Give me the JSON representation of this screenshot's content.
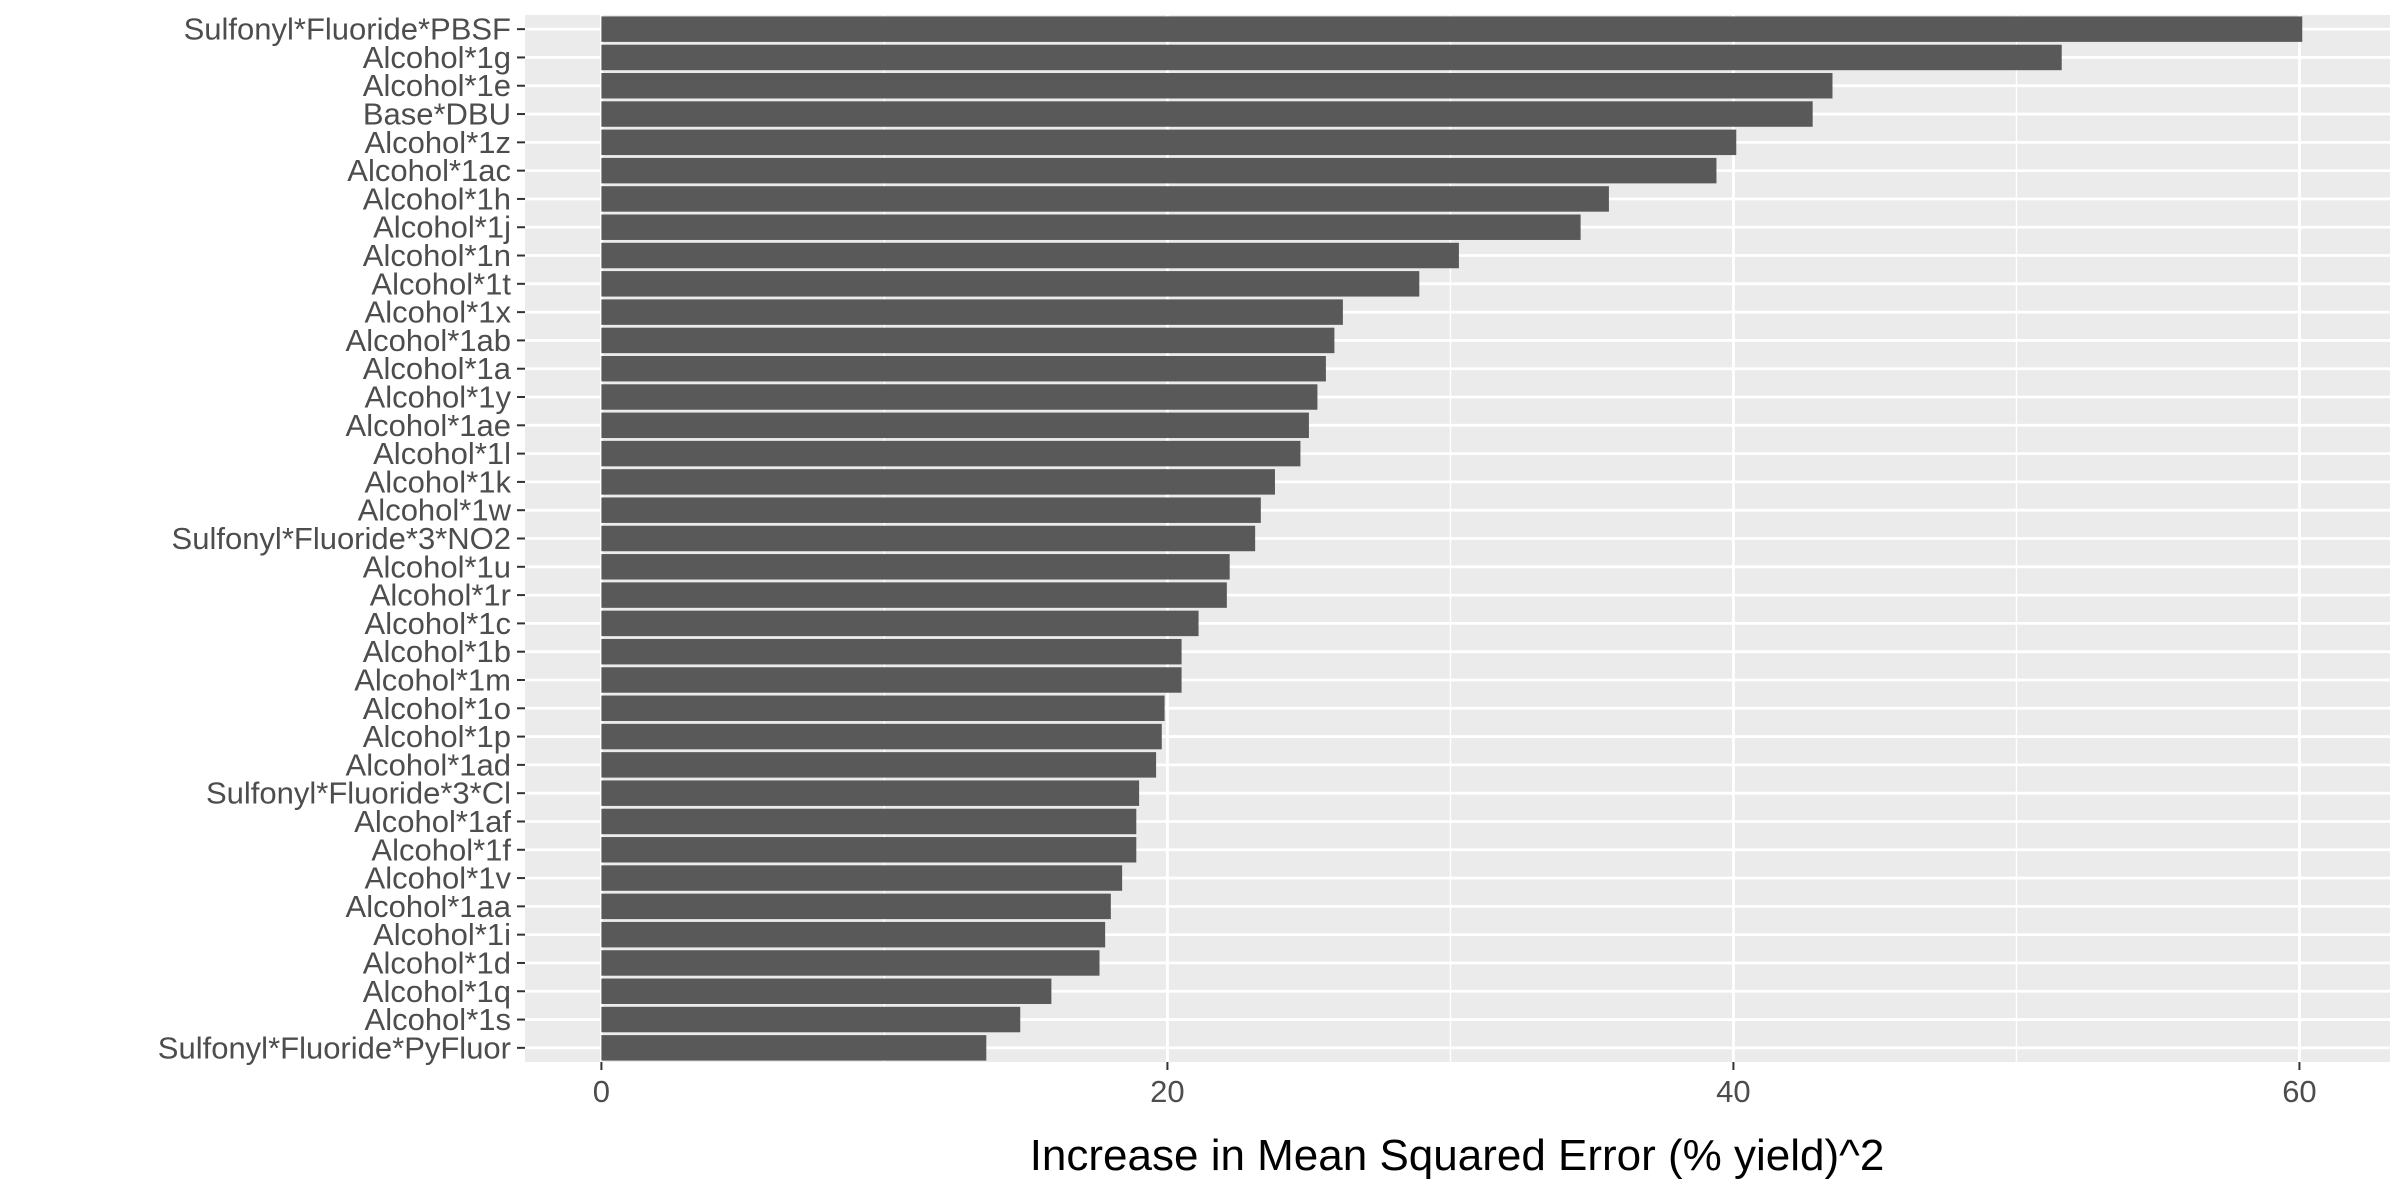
{
  "chart_data": {
    "type": "bar",
    "orientation": "horizontal",
    "categories": [
      "Sulfonyl*Fluoride*PBSF",
      "Alcohol*1g",
      "Alcohol*1e",
      "Base*DBU",
      "Alcohol*1z",
      "Alcohol*1ac",
      "Alcohol*1h",
      "Alcohol*1j",
      "Alcohol*1n",
      "Alcohol*1t",
      "Alcohol*1x",
      "Alcohol*1ab",
      "Alcohol*1a",
      "Alcohol*1y",
      "Alcohol*1ae",
      "Alcohol*1l",
      "Alcohol*1k",
      "Alcohol*1w",
      "Sulfonyl*Fluoride*3*NO2",
      "Alcohol*1u",
      "Alcohol*1r",
      "Alcohol*1c",
      "Alcohol*1b",
      "Alcohol*1m",
      "Alcohol*1o",
      "Alcohol*1p",
      "Alcohol*1ad",
      "Sulfonyl*Fluoride*3*Cl",
      "Alcohol*1af",
      "Alcohol*1f",
      "Alcohol*1v",
      "Alcohol*1aa",
      "Alcohol*1i",
      "Alcohol*1d",
      "Alcohol*1q",
      "Alcohol*1s",
      "Sulfonyl*Fluoride*PyFluor"
    ],
    "values": [
      60.1,
      51.6,
      43.5,
      42.8,
      40.1,
      39.4,
      35.6,
      34.6,
      30.3,
      28.9,
      26.2,
      25.9,
      25.6,
      25.3,
      25.0,
      24.7,
      23.8,
      23.3,
      23.1,
      22.2,
      22.1,
      21.1,
      20.5,
      20.5,
      19.9,
      19.8,
      19.6,
      19.0,
      18.9,
      18.9,
      18.4,
      18.0,
      17.8,
      17.6,
      15.9,
      14.8,
      13.6
    ],
    "xlabel": "Increase in Mean Squared Error (% yield)^2",
    "ylabel": "",
    "xlim": [
      -2.7,
      63.2
    ],
    "x_ticks": [
      0,
      20,
      40,
      60
    ],
    "x_tick_labels": [
      "0",
      "20",
      "40",
      "60"
    ],
    "grid": true,
    "panel_background": "#ebebeb",
    "gridline_color": "#ffffff",
    "bar_color": "#595959",
    "tick_label_color": "#4d4d4d"
  }
}
